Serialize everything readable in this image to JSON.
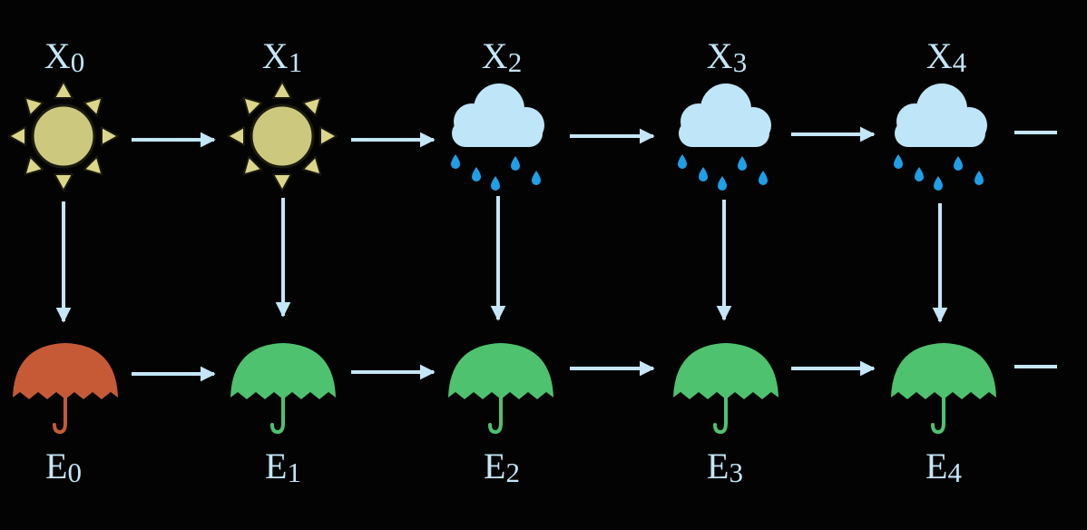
{
  "colors": {
    "background": "#030303",
    "text": "#c4e6f7",
    "arrow": "#c4e6f7",
    "sun_fill": "#ccc97f",
    "sun_ray": "#dcd68a",
    "sun_outline": "#1a1a10",
    "cloud": "#bfe5f8",
    "raindrop": "#1f9fe6",
    "umbrella_green": "#4fc26f",
    "umbrella_red": "#c65a37"
  },
  "states": [
    {
      "letter": "X",
      "sub": "0",
      "weather": "sun-icon"
    },
    {
      "letter": "X",
      "sub": "1",
      "weather": "sun-icon"
    },
    {
      "letter": "X",
      "sub": "2",
      "weather": "rain-cloud-icon"
    },
    {
      "letter": "X",
      "sub": "3",
      "weather": "rain-cloud-icon"
    },
    {
      "letter": "X",
      "sub": "4",
      "weather": "rain-cloud-icon"
    }
  ],
  "evidence": [
    {
      "letter": "E",
      "sub": "0",
      "umbrella": "red"
    },
    {
      "letter": "E",
      "sub": "1",
      "umbrella": "green"
    },
    {
      "letter": "E",
      "sub": "2",
      "umbrella": "green"
    },
    {
      "letter": "E",
      "sub": "3",
      "umbrella": "green"
    },
    {
      "letter": "E",
      "sub": "4",
      "umbrella": "green"
    }
  ]
}
